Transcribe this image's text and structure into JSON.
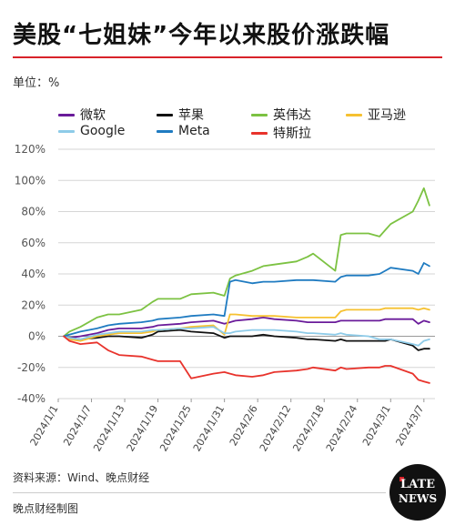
{
  "header": {
    "title": "美股“七姐妹”今年以来股价涨跌幅",
    "unit_label": "单位：%"
  },
  "legend": [
    {
      "label": "微软",
      "color": "#6a1b9a"
    },
    {
      "label": "苹果",
      "color": "#111111"
    },
    {
      "label": "英伟达",
      "color": "#7cc242"
    },
    {
      "label": "亚马逊",
      "color": "#f6c131"
    },
    {
      "label": "Google",
      "color": "#8ecbe8"
    },
    {
      "label": "Meta",
      "color": "#1f7bc1"
    },
    {
      "label": "特斯拉",
      "color": "#e8332c"
    }
  ],
  "chart_data": {
    "type": "line",
    "y_ticks": [
      "120%",
      "100%",
      "80%",
      "60%",
      "40%",
      "20%",
      "0%",
      "-20%",
      "-40%"
    ],
    "x_ticks": [
      "2024/1/1",
      "2024/1/7",
      "2024/1/13",
      "2024/1/19",
      "2024/1/25",
      "2024/1/31",
      "2024/2/6",
      "2024/2/12",
      "2024/2/18",
      "2024/2/24",
      "2024/3/1",
      "2024/3/7"
    ],
    "ylim": [
      -40,
      120
    ],
    "y_unit": "%",
    "grid": true,
    "legend_position": "top",
    "x": [
      "2024/1/2",
      "2024/1/3",
      "2024/1/5",
      "2024/1/8",
      "2024/1/10",
      "2024/1/12",
      "2024/1/16",
      "2024/1/18",
      "2024/1/19",
      "2024/1/23",
      "2024/1/25",
      "2024/1/29",
      "2024/1/31",
      "2024/2/1",
      "2024/2/2",
      "2024/2/5",
      "2024/2/7",
      "2024/2/9",
      "2024/2/13",
      "2024/2/15",
      "2024/2/16",
      "2024/2/20",
      "2024/2/21",
      "2024/2/22",
      "2024/2/26",
      "2024/2/28",
      "2024/2/29",
      "2024/3/1",
      "2024/3/5",
      "2024/3/6",
      "2024/3/7",
      "2024/3/8"
    ],
    "series": [
      {
        "name": "微软",
        "color": "#6a1b9a",
        "values": [
          0,
          -1,
          0,
          2,
          4,
          5,
          5,
          6,
          7,
          8,
          9,
          10,
          8,
          9,
          10,
          11,
          12,
          11,
          10,
          9,
          9,
          9,
          10,
          10,
          10,
          10,
          11,
          11,
          11,
          8,
          10,
          9
        ]
      },
      {
        "name": "苹果",
        "color": "#111111",
        "values": [
          0,
          -1,
          -2,
          -1,
          0,
          0,
          -1,
          1,
          3,
          4,
          3,
          2,
          -1,
          0,
          0,
          0,
          1,
          0,
          -1,
          -2,
          -2,
          -3,
          -2,
          -3,
          -3,
          -3,
          -3,
          -2,
          -6,
          -9,
          -8,
          -8
        ]
      },
      {
        "name": "英伟达",
        "color": "#7cc242",
        "values": [
          0,
          3,
          6,
          12,
          14,
          14,
          17,
          22,
          24,
          24,
          27,
          28,
          26,
          37,
          39,
          42,
          45,
          46,
          48,
          51,
          53,
          42,
          65,
          66,
          66,
          64,
          68,
          72,
          80,
          87,
          95,
          84
        ]
      },
      {
        "name": "亚马逊",
        "color": "#f6c131",
        "values": [
          0,
          -2,
          -3,
          0,
          1,
          2,
          2,
          3,
          4,
          5,
          6,
          7,
          1,
          14,
          14,
          13,
          13,
          13,
          12,
          12,
          12,
          12,
          16,
          17,
          17,
          17,
          18,
          18,
          18,
          17,
          18,
          17
        ]
      },
      {
        "name": "Google",
        "color": "#8ecbe8",
        "values": [
          0,
          -1,
          -2,
          1,
          2,
          3,
          3,
          4,
          4,
          5,
          5,
          6,
          2,
          2,
          3,
          4,
          4,
          4,
          3,
          2,
          2,
          1,
          2,
          1,
          0,
          -2,
          -2,
          -2,
          -5,
          -6,
          -3,
          -2
        ]
      },
      {
        "name": "Meta",
        "color": "#1f7bc1",
        "values": [
          0,
          1,
          3,
          5,
          7,
          8,
          9,
          10,
          11,
          12,
          13,
          14,
          13,
          35,
          36,
          34,
          35,
          35,
          36,
          36,
          36,
          35,
          38,
          39,
          39,
          40,
          42,
          44,
          42,
          40,
          47,
          45
        ]
      },
      {
        "name": "特斯拉",
        "color": "#e8332c",
        "values": [
          0,
          -3,
          -5,
          -4,
          -9,
          -12,
          -13,
          -15,
          -16,
          -16,
          -27,
          -24,
          -23,
          -24,
          -25,
          -26,
          -25,
          -23,
          -22,
          -21,
          -20,
          -22,
          -20,
          -21,
          -20,
          -20,
          -19,
          -19,
          -24,
          -28,
          -29,
          -30
        ]
      }
    ]
  },
  "footer": {
    "source": "资料来源：Wind、晚点财经",
    "credit": "晚点财经制图",
    "logo_line1": "LATE",
    "logo_line2": "NEWS"
  }
}
